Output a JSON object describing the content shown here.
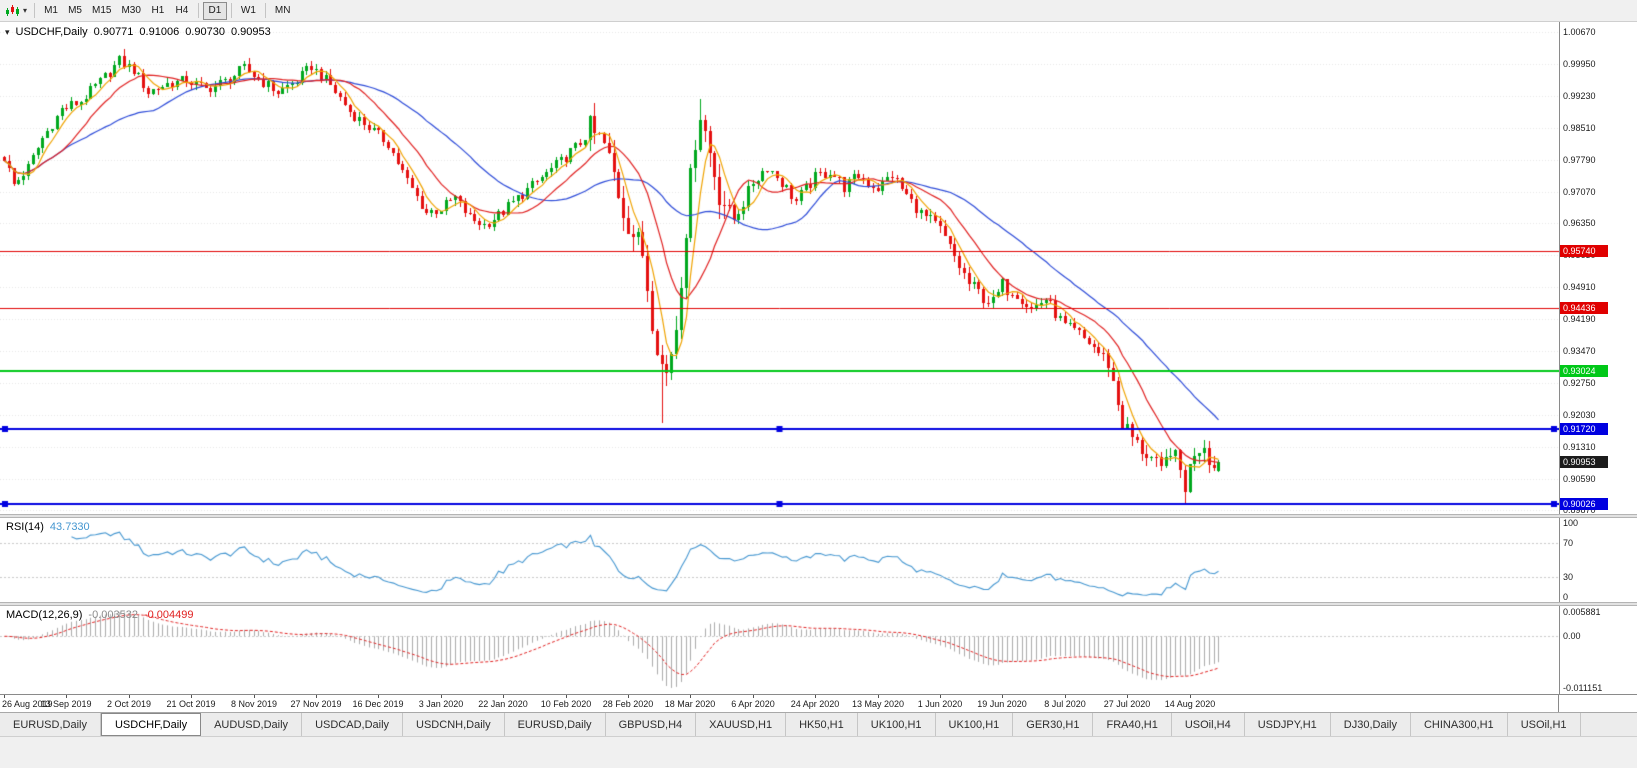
{
  "toolbar": {
    "timeframes": [
      {
        "label": "M1",
        "active": false,
        "sep_after": false
      },
      {
        "label": "M5",
        "active": false,
        "sep_after": false
      },
      {
        "label": "M15",
        "active": false,
        "sep_after": false
      },
      {
        "label": "M30",
        "active": false,
        "sep_after": false
      },
      {
        "label": "H1",
        "active": false,
        "sep_after": false
      },
      {
        "label": "H4",
        "active": false,
        "sep_after": true
      },
      {
        "label": "D1",
        "active": true,
        "sep_after": true
      },
      {
        "label": "W1",
        "active": false,
        "sep_after": true
      },
      {
        "label": "MN",
        "active": false,
        "sep_after": false
      }
    ]
  },
  "chart": {
    "title": {
      "symbol_period": "USDCHF,Daily",
      "open": "0.90771",
      "high": "0.91006",
      "low": "0.90730",
      "close": "0.90953"
    },
    "price_axis": {
      "max": 1.009,
      "min": 0.8979,
      "labels": [
        "1.00670",
        "0.99950",
        "0.99230",
        "0.98510",
        "0.97790",
        "0.97070",
        "0.96350",
        "0.95630",
        "0.94910",
        "0.94190",
        "0.93470",
        "0.92750",
        "0.92030",
        "0.91310",
        "0.90590",
        "0.89870"
      ]
    },
    "hlines": [
      {
        "value": 0.9574,
        "label": "0.95740",
        "color": "#e00000",
        "width": 1,
        "handles": false
      },
      {
        "value": 0.94436,
        "label": "0.94436",
        "color": "#e00000",
        "width": 1,
        "handles": false
      },
      {
        "value": 0.93024,
        "label": "0.93024",
        "color": "#00c818",
        "width": 2,
        "handles": false
      },
      {
        "value": 0.9172,
        "label": "0.91720",
        "color": "#0000e0",
        "width": 2,
        "handles": true
      },
      {
        "value": 0.90026,
        "label": "0.90026",
        "color": "#0000e0",
        "width": 2,
        "handles": true
      }
    ],
    "current_price": {
      "value": 0.90953,
      "label": "0.90953",
      "bg": "#1c1c1c"
    },
    "ma": [
      {
        "period": 32,
        "color": "#2d4bd8"
      },
      {
        "period": 13,
        "color": "#e02020"
      },
      {
        "period": 5,
        "color": "#efa300"
      }
    ],
    "candle_colors": {
      "up": "#00a81e",
      "down": "#e41010"
    },
    "grid_color": "#e6e6e6",
    "dates": [
      "26 Aug 2019",
      "13 Sep 2019",
      "2 Oct 2019",
      "21 Oct 2019",
      "8 Nov 2019",
      "27 Nov 2019",
      "16 Dec 2019",
      "3 Jan 2020",
      "22 Jan 2020",
      "10 Feb 2020",
      "28 Feb 2020",
      "18 Mar 2020",
      "6 Apr 2020",
      "24 Apr 2020",
      "13 May 2020",
      "1 Jun 2020",
      "19 Jun 2020",
      "8 Jul 2020",
      "27 Jul 2020",
      "14 Aug 2020"
    ],
    "date_step_bars": 13
  },
  "chart_data": {
    "type": "candlestick",
    "symbol": "USDCHF",
    "timeframe": "Daily",
    "bar_count": 254,
    "last_ohlc": {
      "o": 0.90771,
      "h": 0.91006,
      "l": 0.9073,
      "c": 0.90953
    },
    "price_anchors": [
      [
        0,
        0.9785
      ],
      [
        2,
        0.9722
      ],
      [
        5,
        0.9762
      ],
      [
        8,
        0.9828
      ],
      [
        12,
        0.9892
      ],
      [
        16,
        0.9912
      ],
      [
        20,
        0.9955
      ],
      [
        24,
        1.0002
      ],
      [
        27,
        0.9982
      ],
      [
        30,
        0.9932
      ],
      [
        34,
        0.995
      ],
      [
        38,
        0.9958
      ],
      [
        42,
        0.9938
      ],
      [
        46,
        0.9955
      ],
      [
        50,
        0.9985
      ],
      [
        53,
        0.9962
      ],
      [
        57,
        0.9932
      ],
      [
        61,
        0.9958
      ],
      [
        64,
        0.999
      ],
      [
        68,
        0.9948
      ],
      [
        72,
        0.9888
      ],
      [
        76,
        0.9852
      ],
      [
        80,
        0.9815
      ],
      [
        84,
        0.973
      ],
      [
        88,
        0.966
      ],
      [
        91,
        0.9668
      ],
      [
        94,
        0.9692
      ],
      [
        97,
        0.9648
      ],
      [
        100,
        0.9632
      ],
      [
        104,
        0.9662
      ],
      [
        108,
        0.9702
      ],
      [
        112,
        0.9738
      ],
      [
        116,
        0.9775
      ],
      [
        120,
        0.9818
      ],
      [
        122,
        0.9845
      ],
      [
        125,
        0.981
      ],
      [
        127,
        0.9745
      ],
      [
        129,
        0.9668
      ],
      [
        131,
        0.9612
      ],
      [
        133,
        0.9568
      ],
      [
        135,
        0.9425
      ],
      [
        137,
        0.9315
      ],
      [
        138,
        0.9295
      ],
      [
        140,
        0.9405
      ],
      [
        142,
        0.963
      ],
      [
        144,
        0.983
      ],
      [
        145,
        0.9888
      ],
      [
        147,
        0.9795
      ],
      [
        149,
        0.9705
      ],
      [
        152,
        0.9645
      ],
      [
        154,
        0.9682
      ],
      [
        156,
        0.9728
      ],
      [
        159,
        0.9765
      ],
      [
        162,
        0.9728
      ],
      [
        165,
        0.9685
      ],
      [
        169,
        0.9738
      ],
      [
        172,
        0.9755
      ],
      [
        175,
        0.9718
      ],
      [
        178,
        0.9742
      ],
      [
        182,
        0.9715
      ],
      [
        185,
        0.9745
      ],
      [
        188,
        0.9698
      ],
      [
        191,
        0.9658
      ],
      [
        195,
        0.9618
      ],
      [
        198,
        0.9558
      ],
      [
        201,
        0.9498
      ],
      [
        204,
        0.947
      ],
      [
        206,
        0.9455
      ],
      [
        208,
        0.9495
      ],
      [
        211,
        0.9478
      ],
      [
        214,
        0.9442
      ],
      [
        217,
        0.9465
      ],
      [
        221,
        0.9402
      ],
      [
        224,
        0.9385
      ],
      [
        227,
        0.9355
      ],
      [
        230,
        0.932
      ],
      [
        233,
        0.9185
      ],
      [
        236,
        0.9135
      ],
      [
        239,
        0.9105
      ],
      [
        241,
        0.9068
      ],
      [
        243,
        0.9128
      ],
      [
        245,
        0.9075
      ],
      [
        246,
        0.9042
      ],
      [
        248,
        0.9122
      ],
      [
        250,
        0.9138
      ],
      [
        252,
        0.9082
      ],
      [
        253,
        0.90953
      ]
    ],
    "volatility_zones": [
      {
        "from": 0,
        "to": 121,
        "vol": 0.0016
      },
      {
        "from": 122,
        "to": 150,
        "vol": 0.0042
      },
      {
        "from": 151,
        "to": 192,
        "vol": 0.0018
      },
      {
        "from": 193,
        "to": 209,
        "vol": 0.0022
      },
      {
        "from": 210,
        "to": 227,
        "vol": 0.0018
      },
      {
        "from": 228,
        "to": 253,
        "vol": 0.0028
      }
    ],
    "wick_overrides": [
      {
        "bar": 25,
        "high": 1.0028
      },
      {
        "bar": 137,
        "low": 0.9185
      },
      {
        "bar": 145,
        "high": 0.9915
      },
      {
        "bar": 246,
        "low": 0.9004
      }
    ]
  },
  "rsi": {
    "name": "RSI(14)",
    "value": "43.7330",
    "period": 14,
    "levels": [
      30,
      70
    ],
    "axis_labels": [
      "100",
      "70",
      "30",
      "0"
    ],
    "color": "#4496d0"
  },
  "macd": {
    "name": "MACD(12,26,9)",
    "value_main": "-0.003532",
    "value_signal": "-0.004499",
    "fast": 12,
    "slow": 26,
    "signal": 9,
    "axis_top": "0.005881",
    "axis_zero": "0.00",
    "axis_bottom": "-0.011151",
    "hist_color": "#ababab",
    "signal_color": "#e02020"
  },
  "tabs": [
    {
      "label": "EURUSD,Daily",
      "active": false
    },
    {
      "label": "USDCHF,Daily",
      "active": true
    },
    {
      "label": "AUDUSD,Daily",
      "active": false
    },
    {
      "label": "USDCAD,Daily",
      "active": false
    },
    {
      "label": "USDCNH,Daily",
      "active": false
    },
    {
      "label": "EURUSD,Daily",
      "active": false
    },
    {
      "label": "GBPUSD,H4",
      "active": false
    },
    {
      "label": "XAUUSD,H1",
      "active": false
    },
    {
      "label": "HK50,H1",
      "active": false
    },
    {
      "label": "UK100,H1",
      "active": false
    },
    {
      "label": "UK100,H1",
      "active": false
    },
    {
      "label": "GER30,H1",
      "active": false
    },
    {
      "label": "FRA40,H1",
      "active": false
    },
    {
      "label": "USOil,H4",
      "active": false
    },
    {
      "label": "USDJPY,H1",
      "active": false
    },
    {
      "label": "DJ30,Daily",
      "active": false
    },
    {
      "label": "CHINA300,H1",
      "active": false
    },
    {
      "label": "USOil,H1",
      "active": false
    }
  ]
}
